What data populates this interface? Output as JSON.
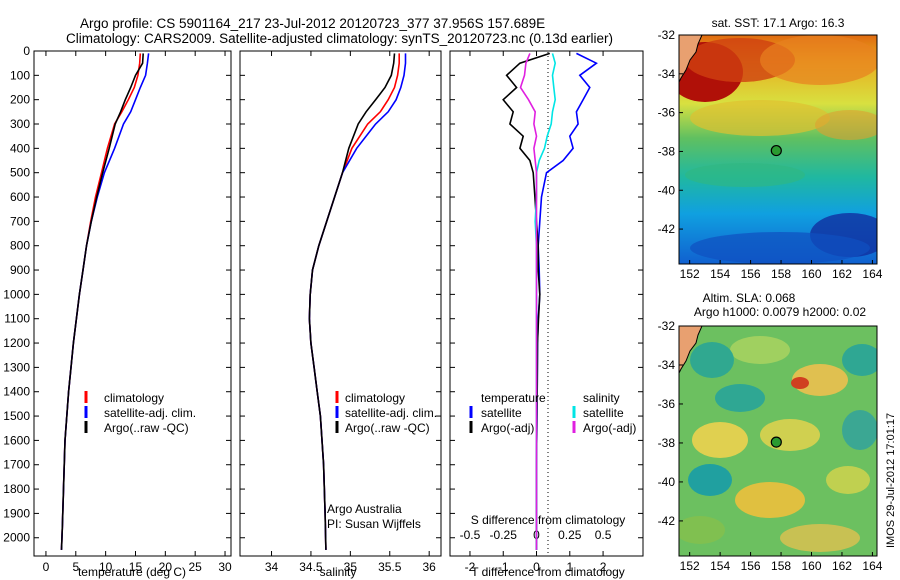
{
  "title": {
    "line1": "Argo profile: CS 5901164_217 23-Jul-2012 20120723_377 37.956S 157.689E",
    "line2": "Climatology: CARS2009. Satellite-adjusted climatology: synTS_20120723.nc (0.13d earlier)"
  },
  "timestamp": "IMOS 29-Jul-2012 17:01:17",
  "colors": {
    "climatology": "#ff0000",
    "satellite": "#0000ff",
    "argo": "#000000",
    "salinity_satellite": "#00e5e5",
    "salinity_argo": "#e020e0"
  },
  "chart_data": [
    {
      "type": "line",
      "panel": "temperature",
      "xlabel": "temperature (deg C)",
      "ylabel": "",
      "xlim": [
        -2,
        31
      ],
      "ylim": [
        2075,
        0
      ],
      "xticks": [
        "0",
        "5",
        "10",
        "15",
        "20",
        "25",
        "30"
      ],
      "yticks": [
        "0",
        "100",
        "200",
        "300",
        "400",
        "500",
        "600",
        "700",
        "800",
        "900",
        "1000",
        "1100",
        "1200",
        "1300",
        "1400",
        "1500",
        "1600",
        "1700",
        "1800",
        "1900",
        "2000"
      ],
      "legend": [
        "climatology",
        "satellite-adj. clim.",
        "Argo(..raw -QC)"
      ],
      "legend_position": "lower-right",
      "series": [
        {
          "name": "climatology",
          "color": "#ff0000",
          "x": [
            15.8,
            15.7,
            15.4,
            14.8,
            13.8,
            12.7,
            11.5,
            10.3,
            9.3,
            8.3,
            7.5,
            6.8,
            6.2,
            5.6,
            5.1,
            4.6,
            4.2,
            3.8,
            3.5,
            3.2,
            2.95,
            2.75,
            2.6
          ],
          "y": [
            10,
            50,
            100,
            150,
            200,
            250,
            300,
            400,
            500,
            600,
            700,
            800,
            900,
            1000,
            1100,
            1200,
            1300,
            1400,
            1500,
            1600,
            1800,
            1950,
            2050
          ]
        },
        {
          "name": "satellite-adj. clim.",
          "color": "#0000ff",
          "x": [
            17.2,
            17.0,
            16.7,
            15.8,
            15.0,
            14.2,
            13.0,
            11.5,
            9.8,
            8.6,
            7.6,
            6.8,
            6.2,
            5.6,
            5.1,
            4.6,
            4.2,
            3.8,
            3.5,
            3.2,
            2.95,
            2.75,
            2.6
          ],
          "y": [
            10,
            50,
            100,
            150,
            200,
            250,
            300,
            400,
            500,
            600,
            700,
            800,
            900,
            1000,
            1100,
            1200,
            1300,
            1400,
            1500,
            1600,
            1800,
            1950,
            2050
          ]
        },
        {
          "name": "Argo(..raw -QC)",
          "color": "#000000",
          "x": [
            16.3,
            16.2,
            15.0,
            14.2,
            13.3,
            12.5,
            11.6,
            10.6,
            9.5,
            8.5,
            7.6,
            6.8,
            6.2,
            5.6,
            5.1,
            4.6,
            4.2,
            3.8,
            3.5,
            3.2,
            2.95,
            2.75,
            2.6
          ],
          "y": [
            10,
            50,
            100,
            150,
            200,
            250,
            300,
            400,
            500,
            600,
            700,
            800,
            900,
            1000,
            1100,
            1200,
            1300,
            1400,
            1500,
            1600,
            1800,
            1950,
            2050
          ]
        }
      ]
    },
    {
      "type": "line",
      "panel": "salinity",
      "xlabel": "salinity",
      "xlim": [
        33.6,
        36.15
      ],
      "ylim": [
        2075,
        0
      ],
      "xticks": [
        "34",
        "34.5",
        "35",
        "35.5",
        "36"
      ],
      "legend": [
        "climatology",
        "satellite-adj. clim.",
        "Argo(..raw -QC)"
      ],
      "legend_position": "lower-right",
      "annotations": [
        "Argo Australia",
        "PI: Susan Wijffels"
      ],
      "series": [
        {
          "name": "climatology",
          "color": "#ff0000",
          "x": [
            35.62,
            35.62,
            35.6,
            35.56,
            35.48,
            35.38,
            35.22,
            35.02,
            34.9,
            34.8,
            34.7,
            34.6,
            34.52,
            34.49,
            34.48,
            34.5,
            34.54,
            34.58,
            34.62,
            34.66,
            34.68,
            34.69
          ],
          "y": [
            10,
            50,
            100,
            150,
            200,
            250,
            300,
            400,
            500,
            600,
            700,
            800,
            900,
            1000,
            1100,
            1200,
            1300,
            1400,
            1500,
            1700,
            1900,
            2050
          ]
        },
        {
          "name": "satellite-adj. clim.",
          "color": "#0000ff",
          "x": [
            35.7,
            35.7,
            35.68,
            35.64,
            35.58,
            35.48,
            35.32,
            35.08,
            34.9,
            34.8,
            34.7,
            34.6,
            34.52,
            34.49,
            34.48,
            34.5,
            34.54,
            34.58,
            34.62,
            34.66,
            34.68,
            34.69
          ],
          "y": [
            10,
            50,
            100,
            150,
            200,
            250,
            300,
            400,
            500,
            600,
            700,
            800,
            900,
            1000,
            1100,
            1200,
            1300,
            1400,
            1500,
            1700,
            1900,
            2050
          ]
        },
        {
          "name": "Argo(..raw -QC)",
          "color": "#000000",
          "x": [
            35.56,
            35.55,
            35.52,
            35.44,
            35.32,
            35.2,
            35.1,
            34.98,
            34.9,
            34.8,
            34.7,
            34.6,
            34.52,
            34.49,
            34.48,
            34.5,
            34.54,
            34.58,
            34.62,
            34.66,
            34.68,
            34.69
          ],
          "y": [
            10,
            50,
            100,
            150,
            200,
            250,
            300,
            400,
            500,
            600,
            700,
            800,
            900,
            1000,
            1100,
            1200,
            1300,
            1400,
            1500,
            1700,
            1900,
            2050
          ]
        }
      ]
    },
    {
      "type": "line",
      "panel": "differences",
      "xlabel": "T difference from climatology",
      "xlabel_top": "S difference from climatology",
      "xlim": [
        -2.6,
        3.2
      ],
      "ylim": [
        2075,
        0
      ],
      "xticks": [
        "-2",
        "-1",
        "0",
        "1",
        "2"
      ],
      "xticks_s": [
        "-0.5",
        "-0.25",
        "0",
        "0.25",
        "0.5"
      ],
      "legend_temperature_title": "temperature",
      "legend_salinity_title": "salinity",
      "legend_temperature": [
        "satellite",
        "Argo(-adj)"
      ],
      "legend_salinity": [
        "satellite",
        "Argo(-adj)"
      ],
      "series": [
        {
          "name": "temperature satellite",
          "color": "#0000ff",
          "x": [
            1.2,
            1.8,
            1.3,
            1.6,
            1.4,
            1.2,
            1.25,
            1.0,
            1.1,
            0.8,
            0.3,
            0.15,
            0.1,
            0.05,
            0.08,
            0.1,
            0.05,
            0.03,
            0.02,
            0.0,
            0.0
          ],
          "y": [
            10,
            50,
            100,
            150,
            200,
            250,
            300,
            350,
            400,
            450,
            500,
            600,
            700,
            800,
            900,
            1000,
            1100,
            1200,
            1400,
            1700,
            2050
          ]
        },
        {
          "name": "temperature Argo(-adj)",
          "color": "#000000",
          "x": [
            0.4,
            -0.5,
            -0.9,
            -0.6,
            -1.0,
            -0.7,
            -0.8,
            -0.4,
            -0.5,
            -0.2,
            -0.1,
            -0.05,
            0.0,
            0.05,
            0.05,
            0.1,
            0.06,
            0.03,
            0.02,
            0.0,
            0.0
          ],
          "y": [
            10,
            50,
            100,
            150,
            200,
            250,
            300,
            350,
            400,
            450,
            500,
            600,
            700,
            800,
            900,
            1000,
            1100,
            1200,
            1400,
            1700,
            2050
          ]
        },
        {
          "name": "salinity satellite",
          "color": "#00e5e5",
          "x": [
            0.12,
            0.14,
            0.12,
            0.13,
            0.14,
            0.12,
            0.11,
            0.08,
            0.06,
            0.02,
            0.0,
            0.0,
            -0.01,
            0.0,
            0.0,
            0.0,
            0.0,
            0.0,
            0.0,
            0.0
          ],
          "y": [
            10,
            50,
            100,
            150,
            200,
            250,
            300,
            350,
            400,
            450,
            500,
            600,
            700,
            800,
            900,
            1000,
            1200,
            1400,
            1700,
            2050
          ]
        },
        {
          "name": "salinity Argo(-adj)",
          "color": "#e020e0",
          "x": [
            -0.05,
            -0.08,
            -0.09,
            -0.12,
            -0.06,
            -0.01,
            -0.02,
            0.0,
            -0.02,
            -0.01,
            0.0,
            0.0,
            0.0,
            0.0,
            0.0,
            0.0,
            0.0,
            0.0,
            0.0,
            0.0
          ],
          "y": [
            10,
            50,
            100,
            150,
            200,
            250,
            300,
            350,
            400,
            450,
            500,
            600,
            700,
            800,
            900,
            1000,
            1200,
            1400,
            1700,
            2050
          ]
        }
      ]
    },
    {
      "type": "heatmap",
      "panel": "map-sst",
      "title": "sat. SST: 17.1  Argo: 16.3",
      "xlim": [
        151.3,
        164.3
      ],
      "ylim": [
        -43.8,
        -32
      ],
      "xticks": [
        "152",
        "154",
        "156",
        "158",
        "160",
        "162",
        "164"
      ],
      "yticks": [
        "-32",
        "-34",
        "-36",
        "-38",
        "-40",
        "-42"
      ],
      "marker": {
        "lon": 157.689,
        "lat": -37.956
      }
    },
    {
      "type": "heatmap",
      "panel": "map-sla",
      "title_line1": "Altim. SLA: 0.068",
      "title_line2": "Argo h1000: 0.0079 h2000: 0.02",
      "xlim": [
        151.3,
        164.3
      ],
      "ylim": [
        -43.8,
        -32
      ],
      "xticks": [
        "152",
        "154",
        "156",
        "158",
        "160",
        "162",
        "164"
      ],
      "yticks": [
        "-32",
        "-34",
        "-36",
        "-38",
        "-40",
        "-42"
      ],
      "marker": {
        "lon": 157.689,
        "lat": -37.956
      }
    }
  ]
}
